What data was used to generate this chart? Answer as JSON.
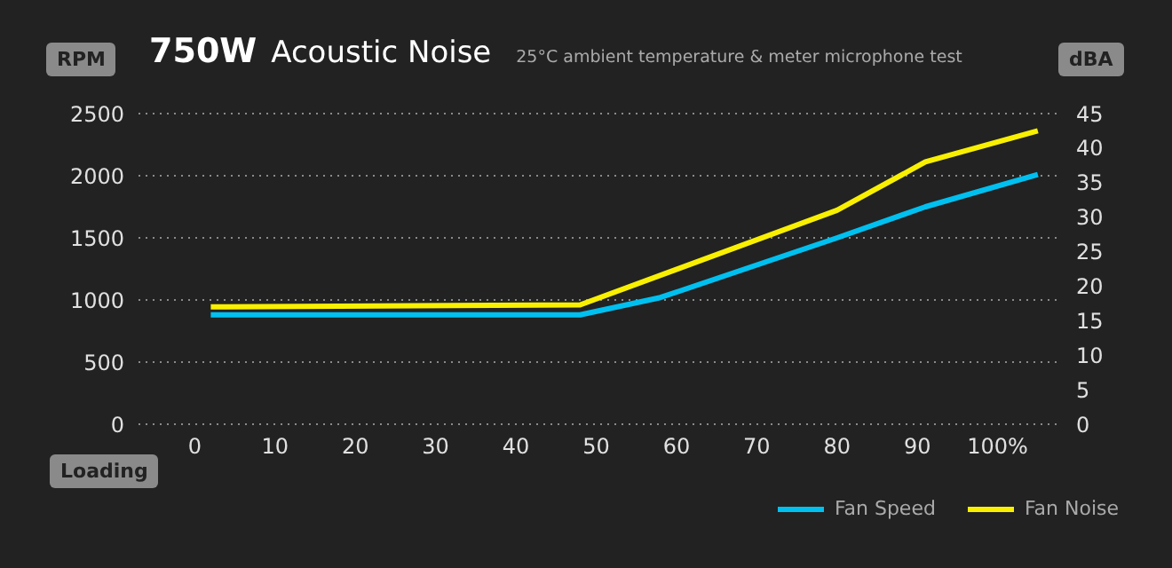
{
  "chart_data": {
    "type": "line",
    "title": "750W Acoustic Noise",
    "subtitle": "25°C ambient temperature & meter microphone test",
    "xlabel": "Loading",
    "ylabel": "RPM",
    "y2label": "dBA",
    "xlim": [
      -7,
      108
    ],
    "xticks": [
      0,
      10,
      20,
      30,
      40,
      50,
      60,
      70,
      80,
      90,
      {
        "value": 100,
        "label": "100%"
      }
    ],
    "ylim": [
      0,
      2500
    ],
    "yticks": [
      0,
      500,
      1000,
      1500,
      2000,
      2500
    ],
    "y2lim": [
      0,
      45
    ],
    "y2ticks": [
      0,
      5,
      10,
      15,
      20,
      25,
      30,
      35,
      40,
      45
    ],
    "grid": "y",
    "legend": "bottom right",
    "marker": "none",
    "line_style": "solid",
    "series": [
      {
        "name": "Fan Speed",
        "color": "#00c0f0",
        "x": [
          2,
          48,
          58,
          80,
          91,
          105
        ],
        "values": [
          880,
          880,
          1020,
          1500,
          1750,
          2010
        ]
      },
      {
        "name": "Fan Noise",
        "color": "#f8f000",
        "axis": "y2",
        "x": [
          2,
          48,
          80,
          91,
          105
        ],
        "values": [
          17,
          17.3,
          31,
          38,
          42.5
        ]
      }
    ]
  }
}
